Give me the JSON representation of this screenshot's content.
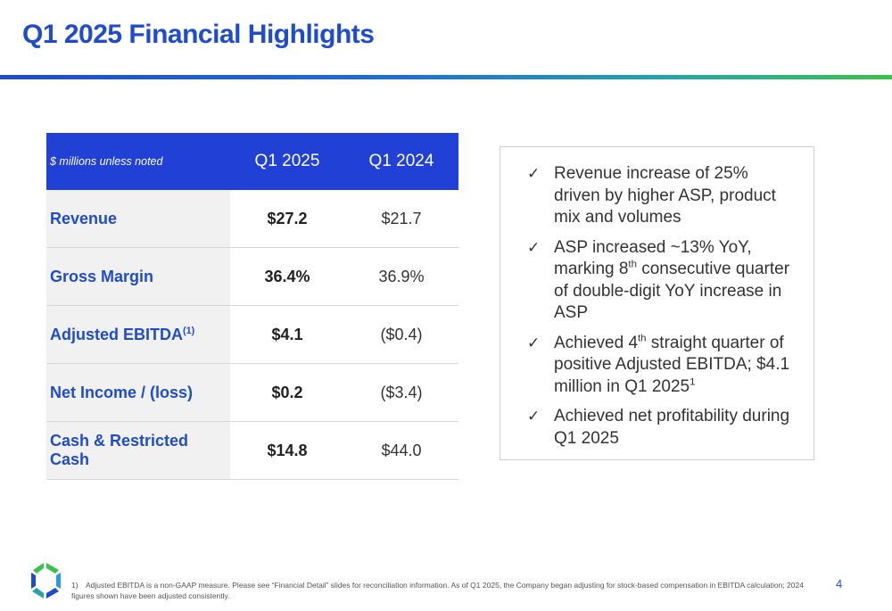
{
  "title": "Q1 2025 Financial Highlights",
  "table": {
    "note": "$ millions unless noted",
    "col1": "Q1 2025",
    "col2": "Q1 2024",
    "rows": [
      {
        "label": "Revenue",
        "sup": "",
        "cur": "$27.2",
        "prev": "$21.7"
      },
      {
        "label": "Gross Margin",
        "sup": "",
        "cur": "36.4%",
        "prev": "36.9%"
      },
      {
        "label": "Adjusted EBITDA",
        "sup": "(1)",
        "cur": "$4.1",
        "prev": "($0.4)"
      },
      {
        "label": "Net Income / (loss)",
        "sup": "",
        "cur": "$0.2",
        "prev": "($3.4)"
      },
      {
        "label": "Cash & Restricted Cash",
        "sup": "",
        "cur": "$14.8",
        "prev": "$44.0"
      }
    ]
  },
  "highlights": {
    "check": "✓",
    "b1": "Revenue increase of 25% driven by higher ASP, product mix and volumes",
    "b2_pre": "ASP increased ~13% YoY, marking 8",
    "b2_sup": "th",
    "b2_post": " consecutive quarter of double-digit YoY increase in ASP",
    "b3_pre": "Achieved 4",
    "b3_sup": "th",
    "b3_mid": " straight quarter of positive Adjusted EBITDA; $4.1 million in Q1 2025",
    "b3_sup2": "1",
    "b4": "Achieved net profitability during Q1 2025"
  },
  "footnote": {
    "num": "1)",
    "text": "Adjusted EBITDA is a non-GAAP measure. Please see “Financial Detail” slides for reconciliation information. As of Q1 2025, the Company began adjusting for stock-based compensation in EBITDA calculation; 2024 figures shown have been adjusted consistently."
  },
  "page_number": "4",
  "colors": {
    "accent": "#1f4ccc",
    "header": "#2140d6",
    "green": "#3cc24c"
  }
}
